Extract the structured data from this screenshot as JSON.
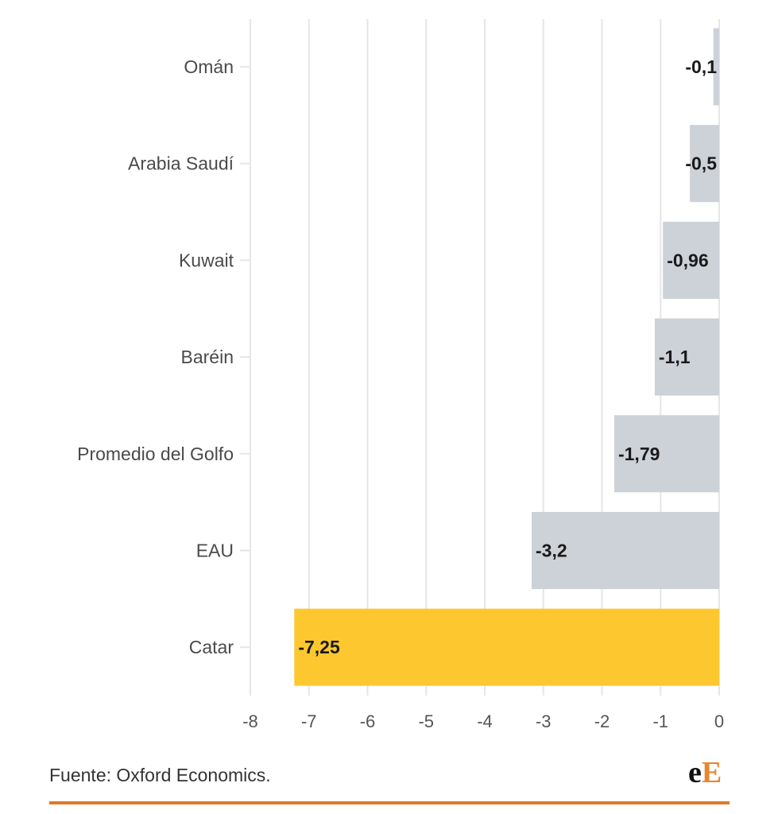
{
  "chart_data": {
    "type": "bar",
    "orientation": "horizontal",
    "categories": [
      "Omán",
      "Arabia Saudí",
      "Kuwait",
      "Baréin",
      "Promedio del Golfo",
      "EAU",
      "Catar"
    ],
    "values": [
      -0.1,
      -0.5,
      -0.96,
      -1.1,
      -1.79,
      -3.2,
      -7.25
    ],
    "value_labels": [
      "-0,1",
      "-0,5",
      "-0,96",
      "-1,1",
      "-1,79",
      "-3,2",
      "-7,25"
    ],
    "highlight_index": 6,
    "xlim": [
      -8,
      0
    ],
    "x_ticks": [
      -8,
      -7,
      -6,
      -5,
      -4,
      -3,
      -2,
      -1,
      0
    ],
    "x_tick_labels": [
      "-8",
      "-7",
      "-6",
      "-5",
      "-4",
      "-3",
      "-2",
      "-1",
      "0"
    ],
    "grid": true,
    "title": "",
    "xlabel": "",
    "ylabel": ""
  },
  "colors": {
    "bar_default": "#cdd1d8",
    "bar_highlight": "#fdc82f",
    "grid": "#e6e6e6",
    "accent_rule": "#e07a24"
  },
  "footer": {
    "source": "Fuente: Oxford Economics.",
    "logo_e": "e",
    "logo_E": "E"
  }
}
